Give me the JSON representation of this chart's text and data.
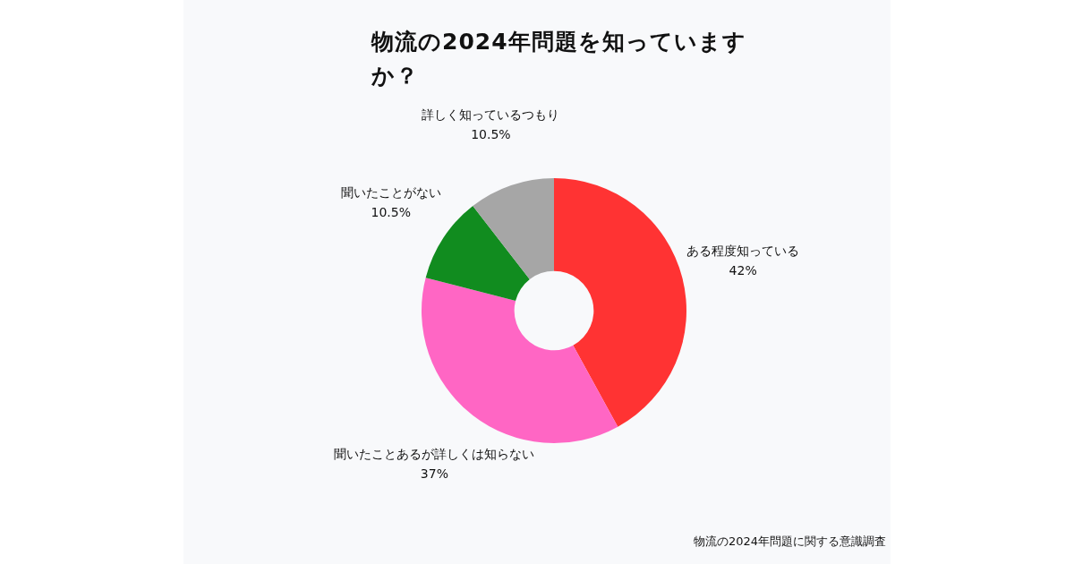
{
  "chart_data": {
    "type": "donut",
    "title": "物流の2024年問題を知っていますか？",
    "categories": [
      "ある程度知っている",
      "聞いたことあるが詳しくは知らない",
      "聞いたことがない",
      "詳しく知っているつもり"
    ],
    "values": [
      42,
      37,
      10.5,
      10.5
    ],
    "colors": [
      "#ff3333",
      "#ff66c4",
      "#118c1f",
      "#a6a6a6"
    ],
    "value_labels": [
      "42%",
      "37%",
      "10.5%",
      "10.5%"
    ],
    "legend": false,
    "annotations": [
      "物流の2024年問題に関する意識調査"
    ]
  }
}
